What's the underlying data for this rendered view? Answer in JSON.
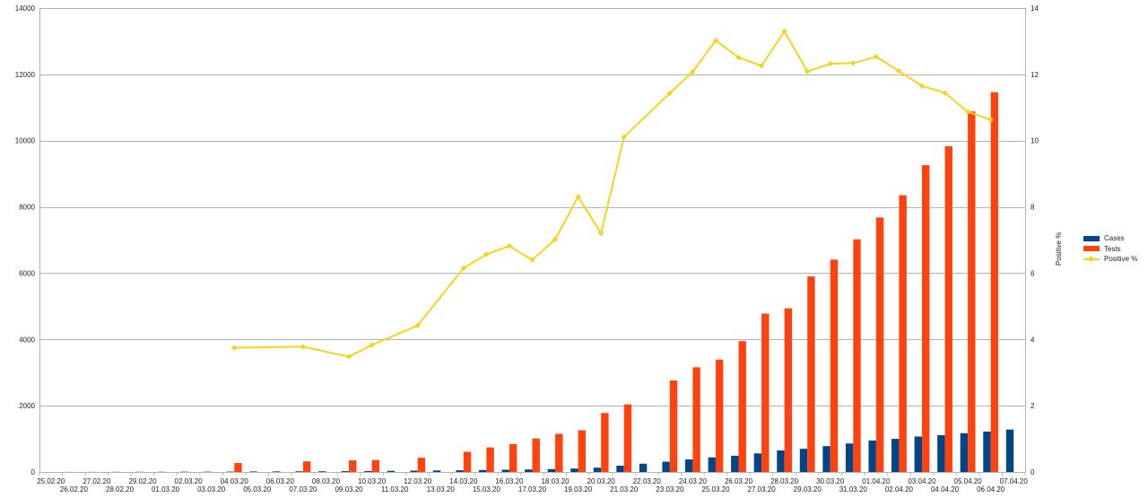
{
  "chart_data": {
    "type": "bar+line",
    "y_left": {
      "min": 0,
      "max": 14000,
      "ticks": [
        0,
        2000,
        4000,
        6000,
        8000,
        10000,
        12000,
        14000
      ]
    },
    "y_right": {
      "min": 0,
      "max": 14,
      "ticks": [
        0,
        2,
        4,
        6,
        8,
        10,
        12,
        14
      ],
      "label": "Positive %"
    },
    "grid": "horizontal",
    "legend_position": "right",
    "categories": [
      "25.02.20",
      "26.02.20",
      "27.02.20",
      "28.02.20",
      "29.02.20",
      "01.03.20",
      "02.03.20",
      "03.03.20",
      "04.03.20",
      "05.03.20",
      "06.03.20",
      "07.03.20",
      "08.03.20",
      "09.03.20",
      "10.03.20",
      "11.03.20",
      "12.03.20",
      "13.03.20",
      "14.03.20",
      "15.03.20",
      "16.03.20",
      "17.03.20",
      "18.03.20",
      "19.03.20",
      "20.03.20",
      "21.03.20",
      "22.03.20",
      "23.03.20",
      "24.03.20",
      "25.03.20",
      "26.03.20",
      "27.03.20",
      "28.03.20",
      "29.03.20",
      "30.03.20",
      "31.03.20",
      "01.04.20",
      "02.04.20",
      "03.04.20",
      "04.04.20",
      "05.04.20",
      "06.04.20",
      "07.04.20"
    ],
    "series": [
      {
        "name": "Cases",
        "kind": "bar",
        "axis": "left",
        "color": "#004586",
        "values": [
          0,
          2,
          3,
          5,
          6,
          7,
          9,
          10,
          12,
          16,
          18,
          20,
          22,
          25,
          30,
          35,
          40,
          46,
          52,
          60,
          68,
          75,
          88,
          104,
          130,
          190,
          250,
          310,
          380,
          440,
          490,
          560,
          650,
          700,
          780,
          860,
          950,
          1000,
          1070,
          1110,
          1170,
          1220,
          1280
        ]
      },
      {
        "name": "Tests",
        "kind": "bar",
        "axis": "left",
        "color": "#ff420e",
        "values": [
          0,
          0,
          0,
          0,
          0,
          0,
          0,
          0,
          270,
          0,
          0,
          320,
          0,
          350,
          360,
          0,
          430,
          0,
          610,
          740,
          840,
          1010,
          1150,
          1260,
          1780,
          2040,
          0,
          2760,
          3160,
          3390,
          3950,
          4780,
          4940,
          5900,
          6410,
          7020,
          7680,
          8350,
          9260,
          9830,
          10880,
          11460,
          0
        ]
      },
      {
        "name": "Positive %",
        "kind": "line",
        "axis": "right",
        "color": "#f5d31f",
        "values": [
          null,
          null,
          null,
          null,
          null,
          null,
          null,
          null,
          3.75,
          null,
          null,
          3.78,
          null,
          3.48,
          3.83,
          null,
          4.42,
          null,
          6.15,
          6.57,
          6.82,
          6.4,
          7.02,
          8.31,
          7.2,
          10.11,
          null,
          11.43,
          12.08,
          13.02,
          12.51,
          12.26,
          13.3,
          12.09,
          12.32,
          12.34,
          12.53,
          12.1,
          11.65,
          11.44,
          10.87,
          10.63,
          null
        ]
      }
    ]
  }
}
